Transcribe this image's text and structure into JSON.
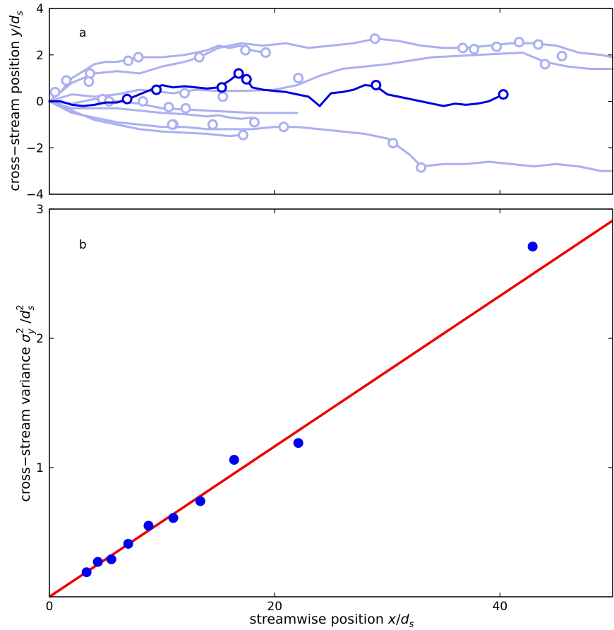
{
  "chart_data": [
    {
      "panel_label": "a",
      "type": "line",
      "ylabel": "cross−stream position y/d_s",
      "ylabel_parts": {
        "text": "cross−stream position ",
        "var": "y",
        "slash": "/",
        "d": "d",
        "sub": "s"
      },
      "xlim": [
        0,
        50
      ],
      "ylim": [
        -4,
        4
      ],
      "yticks": [
        "−4",
        "−2",
        "0",
        "2",
        "4"
      ],
      "ytick_values": [
        -4,
        -2,
        0,
        2,
        4
      ],
      "highlight_color": "#0000dd",
      "faded_color": "#aab0f0",
      "series": [
        {
          "highlight": true,
          "x": [
            0,
            1,
            2,
            3,
            4,
            5,
            6,
            7,
            8,
            9,
            10,
            11,
            12,
            13,
            14,
            15,
            16,
            16.8,
            17.5,
            18,
            19,
            20,
            21,
            22,
            23,
            24,
            25,
            26,
            27,
            28,
            29,
            30,
            31,
            32,
            33,
            34,
            35,
            36,
            37,
            38,
            39,
            40.3
          ],
          "y": [
            0,
            0,
            -0.15,
            -0.2,
            -0.15,
            -0.05,
            -0.05,
            0.1,
            0.3,
            0.5,
            0.7,
            0.6,
            0.65,
            0.6,
            0.55,
            0.6,
            0.9,
            1.2,
            0.95,
            0.6,
            0.5,
            0.45,
            0.4,
            0.3,
            0.2,
            -0.2,
            0.35,
            0.4,
            0.5,
            0.7,
            0.65,
            0.3,
            0.2,
            0.1,
            0.0,
            -0.1,
            -0.2,
            -0.1,
            -0.15,
            -0.1,
            0.0,
            0.3
          ],
          "markers_x": [
            6.9,
            9.5,
            15.3,
            16.8,
            17.5,
            29.0,
            40.3
          ],
          "markers_y": [
            0.1,
            0.5,
            0.6,
            1.2,
            0.95,
            0.7,
            0.3
          ]
        },
        {
          "x": [
            0,
            1,
            2,
            3,
            4,
            5,
            6,
            7,
            8,
            10,
            12,
            14,
            15,
            16,
            17,
            18,
            19
          ],
          "y": [
            0,
            0.4,
            1.0,
            1.3,
            1.6,
            1.7,
            1.7,
            1.8,
            1.9,
            1.9,
            2.0,
            2.2,
            2.4,
            2.3,
            2.4,
            2.2,
            2.1
          ],
          "markers_x": [
            0.5,
            1.5,
            7.0,
            7.9,
            17.4,
            19.2
          ],
          "markers_y": [
            0.4,
            0.9,
            1.75,
            1.9,
            2.2,
            2.1
          ]
        },
        {
          "x": [
            0,
            2,
            4,
            6,
            8,
            10,
            12,
            13.3,
            15,
            17,
            19,
            21,
            23,
            25,
            27,
            29,
            31,
            33,
            35,
            37,
            39,
            41,
            43,
            45,
            47,
            49,
            50
          ],
          "y": [
            0,
            0.8,
            1.2,
            1.3,
            1.2,
            1.5,
            1.7,
            1.9,
            2.3,
            2.5,
            2.4,
            2.5,
            2.3,
            2.4,
            2.5,
            2.7,
            2.6,
            2.4,
            2.3,
            2.3,
            2.4,
            2.5,
            2.5,
            2.4,
            2.1,
            2.0,
            1.9
          ],
          "markers_x": [
            3.6,
            13.3,
            28.9,
            36.7,
            37.7,
            39.7,
            41.7,
            43.4,
            45.5
          ],
          "markers_y": [
            1.2,
            1.9,
            2.7,
            2.3,
            2.25,
            2.35,
            2.55,
            2.45,
            1.95
          ]
        },
        {
          "x": [
            0,
            2,
            4,
            6,
            8,
            11,
            13,
            15,
            17,
            20,
            22,
            24,
            26,
            30,
            34,
            38,
            42,
            44,
            46,
            48,
            50
          ],
          "y": [
            0,
            0.3,
            0.2,
            0.3,
            0.5,
            0.35,
            0.5,
            0.45,
            0.45,
            0.5,
            0.7,
            1.1,
            1.4,
            1.6,
            1.9,
            2.0,
            2.1,
            1.7,
            1.5,
            1.4,
            1.4
          ],
          "markers_x": [
            3.5,
            12.0,
            22.1,
            44.0
          ],
          "markers_y": [
            0.85,
            0.35,
            1.0,
            1.6
          ]
        },
        {
          "x": [
            0,
            2,
            4,
            6,
            8,
            10,
            12,
            14,
            16,
            18,
            20,
            22
          ],
          "y": [
            0,
            -0.1,
            0.1,
            0.0,
            -0.1,
            -0.3,
            -0.35,
            -0.4,
            -0.45,
            -0.5,
            -0.5,
            -0.5
          ],
          "markers_x": [
            4.7,
            5.3,
            8.3,
            10.6,
            12.1
          ],
          "markers_y": [
            0.1,
            0.0,
            0.0,
            -0.25,
            -0.3
          ]
        },
        {
          "x": [
            0,
            2,
            4,
            6,
            8,
            10,
            12,
            13,
            14,
            15,
            16,
            17,
            18
          ],
          "y": [
            0,
            -0.3,
            -0.3,
            -0.3,
            -0.4,
            -0.5,
            -0.55,
            -0.6,
            -0.65,
            -0.6,
            -0.7,
            -0.75,
            -0.7
          ],
          "markers_x": [
            11.0,
            14.5,
            15.4
          ],
          "markers_y": [
            -1.0,
            -1.0,
            0.2
          ]
        },
        {
          "x": [
            0,
            2,
            4,
            6,
            8,
            10,
            12,
            14,
            16,
            18,
            20,
            22,
            24,
            26,
            28,
            30,
            32,
            33,
            35,
            37,
            39,
            41,
            43,
            45,
            47,
            49,
            50
          ],
          "y": [
            0,
            -0.5,
            -0.7,
            -0.9,
            -1.0,
            -1.1,
            -1.1,
            -1.2,
            -1.2,
            -1.2,
            -1.1,
            -1.1,
            -1.2,
            -1.3,
            -1.4,
            -1.6,
            -2.3,
            -2.8,
            -2.7,
            -2.7,
            -2.6,
            -2.7,
            -2.8,
            -2.7,
            -2.8,
            -3.0,
            -3.0
          ],
          "markers_x": [
            17.2,
            18.2,
            20.8,
            30.5,
            33.0
          ],
          "markers_y": [
            -1.45,
            -0.9,
            -1.1,
            -1.8,
            -2.85
          ]
        },
        {
          "x": [
            0,
            2,
            4,
            6,
            8,
            10,
            12,
            14,
            16,
            17
          ],
          "y": [
            0,
            -0.4,
            -0.8,
            -1.0,
            -1.2,
            -1.3,
            -1.35,
            -1.4,
            -1.5,
            -1.45
          ],
          "markers_x": [
            10.9
          ],
          "markers_y": [
            -1.0
          ]
        }
      ]
    },
    {
      "panel_label": "b",
      "type": "scatter",
      "xlabel": "streamwise position x/d_s",
      "xlabel_parts": {
        "text": "streamwise position ",
        "var": "x",
        "slash": "/",
        "d": "d",
        "sub": "s"
      },
      "ylabel": "cross−stream variance σ_y² /d_s²",
      "ylabel_parts": {
        "text": "cross−stream variance ",
        "sigma": "σ",
        "sub": "y",
        "sup": "2",
        "slash": " /",
        "d": "d",
        "dsub": "s",
        "dsup": "2"
      },
      "xlim": [
        0,
        50
      ],
      "ylim": [
        0,
        3
      ],
      "xticks": [
        "0",
        "20",
        "40"
      ],
      "xtick_values": [
        0,
        20,
        40
      ],
      "yticks": [
        "1",
        "2",
        "3"
      ],
      "ytick_values": [
        1,
        2,
        3
      ],
      "points": {
        "x": [
          3.3,
          4.3,
          5.5,
          7.0,
          8.8,
          11.0,
          13.4,
          16.4,
          22.1,
          42.9
        ],
        "y": [
          0.19,
          0.27,
          0.29,
          0.41,
          0.55,
          0.61,
          0.74,
          1.06,
          1.19,
          2.71
        ],
        "color": "#0000ee"
      },
      "fit_line": {
        "x": [
          0,
          50
        ],
        "y": [
          0,
          2.91
        ],
        "color": "#ee0000"
      }
    }
  ]
}
